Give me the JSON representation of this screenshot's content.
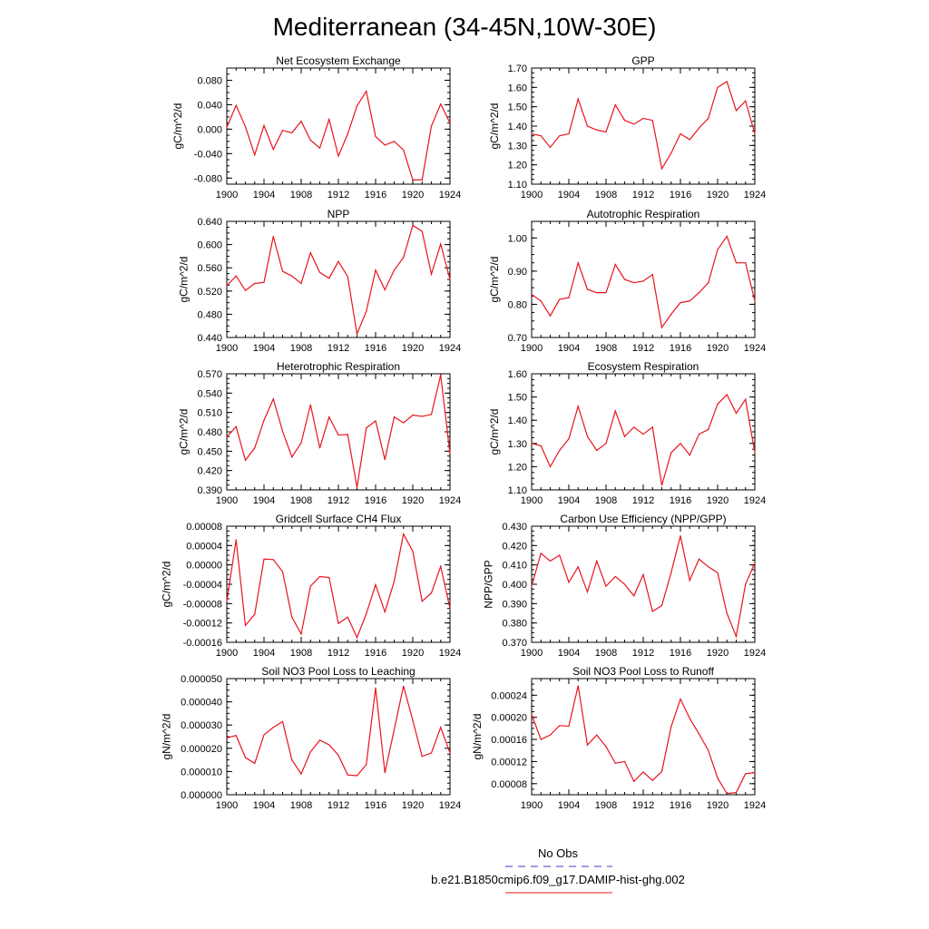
{
  "figure": {
    "title": "Mediterranean (34-45N,10W-30E)",
    "line_color": "#e8141e",
    "obs_color": "#3c3cc8",
    "legend": {
      "obs_label": "No Obs",
      "model_label": "b.e21.B1850cmip6.f09_g17.DAMIP-hist-ghg.002"
    }
  },
  "chart_data": [
    {
      "type": "line",
      "title": "Net Ecosystem Exchange",
      "ylabel": "gC/m^2/d",
      "xlim": [
        1900,
        1924
      ],
      "xticks": [
        "1900",
        "1904",
        "1908",
        "1912",
        "1916",
        "1920",
        "1924"
      ],
      "ylim": [
        -0.09,
        0.1
      ],
      "yticks": [
        "-0.080",
        "-0.040",
        "0.000",
        "0.040",
        "0.080"
      ],
      "x": [
        1900,
        1901,
        1902,
        1903,
        1904,
        1905,
        1906,
        1907,
        1908,
        1909,
        1910,
        1911,
        1912,
        1913,
        1914,
        1915,
        1916,
        1917,
        1918,
        1919,
        1920,
        1921,
        1922,
        1923,
        1924
      ],
      "values": [
        0.003,
        0.039,
        0.004,
        -0.042,
        0.006,
        -0.033,
        -0.002,
        -0.006,
        0.013,
        -0.018,
        -0.031,
        0.016,
        -0.044,
        -0.008,
        0.038,
        0.062,
        -0.012,
        -0.026,
        -0.02,
        -0.034,
        -0.083,
        -0.083,
        0.005,
        0.041,
        0.01
      ]
    },
    {
      "type": "line",
      "title": "GPP",
      "ylabel": "gC/m^2/d",
      "xlim": [
        1900,
        1924
      ],
      "xticks": [
        "1900",
        "1904",
        "1908",
        "1912",
        "1916",
        "1920",
        "1924"
      ],
      "ylim": [
        1.1,
        1.7
      ],
      "yticks": [
        "1.10",
        "1.20",
        "1.30",
        "1.40",
        "1.50",
        "1.60",
        "1.70"
      ],
      "x": [
        1900,
        1901,
        1902,
        1903,
        1904,
        1905,
        1906,
        1907,
        1908,
        1909,
        1910,
        1911,
        1912,
        1913,
        1914,
        1915,
        1916,
        1917,
        1918,
        1919,
        1920,
        1921,
        1922,
        1923,
        1924
      ],
      "values": [
        1.36,
        1.35,
        1.29,
        1.35,
        1.36,
        1.54,
        1.4,
        1.38,
        1.37,
        1.51,
        1.43,
        1.41,
        1.44,
        1.43,
        1.18,
        1.26,
        1.36,
        1.33,
        1.39,
        1.44,
        1.6,
        1.63,
        1.48,
        1.53,
        1.36
      ]
    },
    {
      "type": "line",
      "title": "NPP",
      "ylabel": "gC/m^2/d",
      "xlim": [
        1900,
        1924
      ],
      "xticks": [
        "1900",
        "1904",
        "1908",
        "1912",
        "1916",
        "1920",
        "1924"
      ],
      "ylim": [
        0.44,
        0.64
      ],
      "yticks": [
        "0.440",
        "0.480",
        "0.520",
        "0.560",
        "0.600",
        "0.640"
      ],
      "x": [
        1900,
        1901,
        1902,
        1903,
        1904,
        1905,
        1906,
        1907,
        1908,
        1909,
        1910,
        1911,
        1912,
        1913,
        1914,
        1915,
        1916,
        1917,
        1918,
        1919,
        1920,
        1921,
        1922,
        1923,
        1924
      ],
      "values": [
        0.529,
        0.546,
        0.521,
        0.533,
        0.535,
        0.614,
        0.554,
        0.546,
        0.533,
        0.586,
        0.552,
        0.542,
        0.571,
        0.545,
        0.446,
        0.485,
        0.556,
        0.522,
        0.556,
        0.578,
        0.633,
        0.623,
        0.549,
        0.601,
        0.54
      ]
    },
    {
      "type": "line",
      "title": "Autotrophic Respiration",
      "ylabel": "gC/m^2/d",
      "xlim": [
        1900,
        1924
      ],
      "xticks": [
        "1900",
        "1904",
        "1908",
        "1912",
        "1916",
        "1920",
        "1924"
      ],
      "ylim": [
        0.7,
        1.05
      ],
      "yticks": [
        "0.70",
        "0.80",
        "0.90",
        "1.00"
      ],
      "x": [
        1900,
        1901,
        1902,
        1903,
        1904,
        1905,
        1906,
        1907,
        1908,
        1909,
        1910,
        1911,
        1912,
        1913,
        1914,
        1915,
        1916,
        1917,
        1918,
        1919,
        1920,
        1921,
        1922,
        1923,
        1924
      ],
      "values": [
        0.83,
        0.81,
        0.765,
        0.815,
        0.82,
        0.925,
        0.845,
        0.835,
        0.835,
        0.92,
        0.875,
        0.865,
        0.87,
        0.89,
        0.73,
        0.77,
        0.805,
        0.81,
        0.835,
        0.865,
        0.965,
        1.005,
        0.925,
        0.925,
        0.81
      ]
    },
    {
      "type": "line",
      "title": "Heterotrophic Respiration",
      "ylabel": "gC/m^2/d",
      "xlim": [
        1900,
        1924
      ],
      "xticks": [
        "1900",
        "1904",
        "1908",
        "1912",
        "1916",
        "1920",
        "1924"
      ],
      "ylim": [
        0.39,
        0.57
      ],
      "yticks": [
        "0.390",
        "0.420",
        "0.450",
        "0.480",
        "0.510",
        "0.540",
        "0.570"
      ],
      "x": [
        1900,
        1901,
        1902,
        1903,
        1904,
        1905,
        1906,
        1907,
        1908,
        1909,
        1910,
        1911,
        1912,
        1913,
        1914,
        1915,
        1916,
        1917,
        1918,
        1919,
        1920,
        1921,
        1922,
        1923,
        1924
      ],
      "values": [
        0.472,
        0.488,
        0.436,
        0.455,
        0.498,
        0.531,
        0.481,
        0.441,
        0.463,
        0.522,
        0.455,
        0.503,
        0.475,
        0.476,
        0.394,
        0.486,
        0.497,
        0.437,
        0.503,
        0.494,
        0.506,
        0.504,
        0.507,
        0.568,
        0.446
      ]
    },
    {
      "type": "line",
      "title": "Ecosystem Respiration",
      "ylabel": "gC/m^2/d",
      "xlim": [
        1900,
        1924
      ],
      "xticks": [
        "1900",
        "1904",
        "1908",
        "1912",
        "1916",
        "1920",
        "1924"
      ],
      "ylim": [
        1.1,
        1.6
      ],
      "yticks": [
        "1.10",
        "1.20",
        "1.30",
        "1.40",
        "1.50",
        "1.60"
      ],
      "x": [
        1900,
        1901,
        1902,
        1903,
        1904,
        1905,
        1906,
        1907,
        1908,
        1909,
        1910,
        1911,
        1912,
        1913,
        1914,
        1915,
        1916,
        1917,
        1918,
        1919,
        1920,
        1921,
        1922,
        1923,
        1924
      ],
      "values": [
        1.3,
        1.29,
        1.2,
        1.27,
        1.32,
        1.46,
        1.33,
        1.27,
        1.3,
        1.44,
        1.33,
        1.37,
        1.34,
        1.37,
        1.12,
        1.26,
        1.3,
        1.25,
        1.34,
        1.36,
        1.47,
        1.51,
        1.43,
        1.49,
        1.26
      ]
    },
    {
      "type": "line",
      "title": "Gridcell Surface CH4 Flux",
      "ylabel": "gC/m^2/d",
      "xlim": [
        1900,
        1924
      ],
      "xticks": [
        "1900",
        "1904",
        "1908",
        "1912",
        "1916",
        "1920",
        "1924"
      ],
      "ylim": [
        -0.00016,
        8e-05
      ],
      "yticks": [
        "-0.00016",
        "-0.00012",
        "-0.00008",
        "-0.00004",
        "0.00000",
        "0.00004",
        "0.00008"
      ],
      "x": [
        1900,
        1901,
        1902,
        1903,
        1904,
        1905,
        1906,
        1907,
        1908,
        1909,
        1910,
        1911,
        1912,
        1913,
        1914,
        1915,
        1916,
        1917,
        1918,
        1919,
        1920,
        1921,
        1922,
        1923,
        1924
      ],
      "values": [
        -7.5e-05,
        5.2e-05,
        -0.000125,
        -0.000102,
        1.2e-05,
        1.1e-05,
        -1.4e-05,
        -0.000108,
        -0.000143,
        -4.4e-05,
        -2.4e-05,
        -2.6e-05,
        -0.000121,
        -0.000108,
        -0.00015,
        -0.000101,
        -4.1e-05,
        -9.7e-05,
        -3.4e-05,
        6.4e-05,
        2.8e-05,
        -7.5e-05,
        -5.8e-05,
        -3e-06,
        -9e-05
      ]
    },
    {
      "type": "line",
      "title": "Carbon Use Efficiency (NPP/GPP)",
      "ylabel": "NPP/GPP",
      "xlim": [
        1900,
        1924
      ],
      "xticks": [
        "1900",
        "1904",
        "1908",
        "1912",
        "1916",
        "1920",
        "1924"
      ],
      "ylim": [
        0.37,
        0.43
      ],
      "yticks": [
        "0.370",
        "0.380",
        "0.390",
        "0.400",
        "0.410",
        "0.420",
        "0.430"
      ],
      "x": [
        1900,
        1901,
        1902,
        1903,
        1904,
        1905,
        1906,
        1907,
        1908,
        1909,
        1910,
        1911,
        1912,
        1913,
        1914,
        1915,
        1916,
        1917,
        1918,
        1919,
        1920,
        1921,
        1922,
        1923,
        1924
      ],
      "values": [
        0.399,
        0.416,
        0.412,
        0.415,
        0.401,
        0.409,
        0.396,
        0.412,
        0.399,
        0.404,
        0.4,
        0.394,
        0.405,
        0.386,
        0.389,
        0.406,
        0.425,
        0.402,
        0.413,
        0.409,
        0.406,
        0.385,
        0.373,
        0.4,
        0.411
      ]
    },
    {
      "type": "line",
      "title": "Soil NO3 Pool Loss to Leaching",
      "ylabel": "gN/m^2/d",
      "xlim": [
        1900,
        1924
      ],
      "xticks": [
        "1900",
        "1904",
        "1908",
        "1912",
        "1916",
        "1920",
        "1924"
      ],
      "ylim": [
        0,
        5e-05
      ],
      "yticks": [
        "0.000000",
        "0.000010",
        "0.000020",
        "0.000030",
        "0.000040",
        "0.000050"
      ],
      "x": [
        1900,
        1901,
        1902,
        1903,
        1904,
        1905,
        1906,
        1907,
        1908,
        1909,
        1910,
        1911,
        1912,
        1913,
        1914,
        1915,
        1916,
        1917,
        1918,
        1919,
        1920,
        1921,
        1922,
        1923,
        1924
      ],
      "values": [
        2.45e-05,
        2.55e-05,
        1.6e-05,
        1.35e-05,
        2.58e-05,
        2.9e-05,
        3.15e-05,
        1.5e-05,
        9e-06,
        1.85e-05,
        2.35e-05,
        2.15e-05,
        1.7e-05,
        8.5e-06,
        8.2e-06,
        1.3e-05,
        4.6e-05,
        9.5e-06,
        2.8e-05,
        4.68e-05,
        3.2e-05,
        1.65e-05,
        1.8e-05,
        2.9e-05,
        1.8e-05
      ]
    },
    {
      "type": "line",
      "title": "Soil NO3 Pool Loss to Runoff",
      "ylabel": "gN/m^2/d",
      "xlim": [
        1900,
        1924
      ],
      "xticks": [
        "1900",
        "1904",
        "1908",
        "1912",
        "1916",
        "1920",
        "1924"
      ],
      "ylim": [
        6e-05,
        0.00027
      ],
      "yticks": [
        "0.00008",
        "0.00012",
        "0.00016",
        "0.00020",
        "0.00024"
      ],
      "x": [
        1900,
        1901,
        1902,
        1903,
        1904,
        1905,
        1906,
        1907,
        1908,
        1909,
        1910,
        1911,
        1912,
        1913,
        1914,
        1915,
        1916,
        1917,
        1918,
        1919,
        1920,
        1921,
        1922,
        1923,
        1924
      ],
      "values": [
        0.000205,
        0.00016,
        0.000168,
        0.000185,
        0.000184,
        0.000257,
        0.00015,
        0.000168,
        0.000147,
        0.000117,
        0.00012,
        8.4e-05,
        0.000101,
        8.6e-05,
        0.000102,
        0.000183,
        0.000233,
        0.000198,
        0.00017,
        0.00014,
        9e-05,
        6.2e-05,
        6.4e-05,
        9.8e-05,
        0.0001
      ]
    }
  ]
}
